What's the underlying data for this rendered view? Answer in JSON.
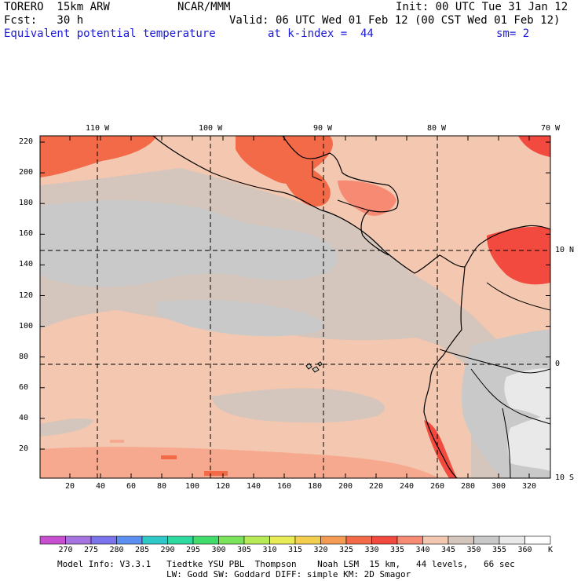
{
  "header": {
    "model": "TORERO  15km ARW",
    "center": "NCAR/MMM",
    "init": "Init: 00 UTC Tue 31 Jan 12",
    "fcst": "Fcst:   30 h",
    "valid": "Valid: 06 UTC Wed 01 Feb 12 (00 CST Wed 01 Feb 12)",
    "field": "Equivalent potential temperature",
    "level": "at k-index =  44",
    "smooth": "sm= 2"
  },
  "map": {
    "lon_labels": [
      "110 W",
      "100 W",
      "90 W",
      "80 W",
      "70 W"
    ],
    "lat_labels": [
      "10 N",
      "0",
      "10 S"
    ],
    "y_ticks": [
      "220",
      "200",
      "180",
      "160",
      "140",
      "120",
      "100",
      "80",
      "60",
      "40",
      "20"
    ],
    "x_ticks": [
      "20",
      "40",
      "60",
      "80",
      "100",
      "120",
      "140",
      "160",
      "180",
      "200",
      "220",
      "240",
      "260",
      "280",
      "300",
      "320"
    ]
  },
  "colorbar": {
    "unit": "K",
    "labels": [
      "270",
      "275",
      "280",
      "285",
      "290",
      "295",
      "300",
      "305",
      "310",
      "315",
      "320",
      "325",
      "330",
      "335",
      "340",
      "345",
      "350",
      "355",
      "360"
    ],
    "colors": [
      "#c84fd0",
      "#a673e0",
      "#7b73ec",
      "#5d8ff0",
      "#2ec8c8",
      "#2ed9a0",
      "#42dc6c",
      "#7be35a",
      "#b7ea57",
      "#e7ec57",
      "#f2cf4e",
      "#f59a52",
      "#f36a49",
      "#f24a3f",
      "#f78a72",
      "#f3c7b0",
      "#d4c6bc",
      "#c9c9c9",
      "#e9e9e9",
      "#ffffff"
    ]
  },
  "footer": {
    "line1": "Model Info: V3.3.1   Tiedtke YSU PBL  Thompson    Noah LSM  15 km,   44 levels,   66 sec",
    "line2": "LW: Godd SW: Goddard DIFF: simple KM: 2D Smagor"
  }
}
